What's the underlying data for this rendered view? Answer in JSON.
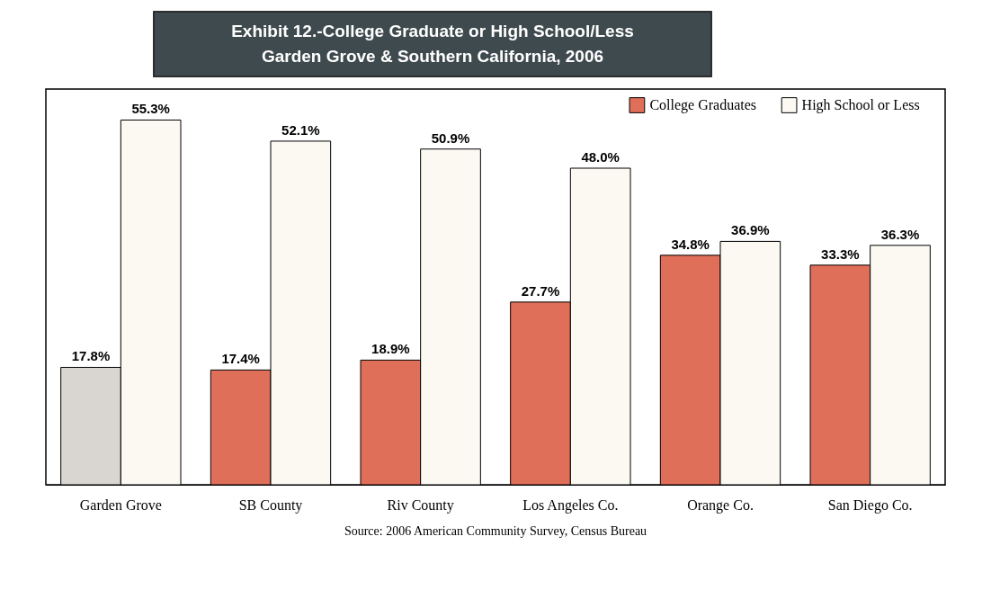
{
  "chart_data": {
    "type": "bar",
    "title": "Exhibit 12.-College Graduate or High School/Less",
    "subtitle": "Garden Grove & Southern California, 2006",
    "categories": [
      "Garden Grove",
      "SB County",
      "Riv County",
      "Los Angeles Co.",
      "Orange Co.",
      "San Diego Co."
    ],
    "series": [
      {
        "name": "College Graduates",
        "color": "#e06f5a",
        "colors": [
          "#d9d6d2",
          "#e06f5a",
          "#e06f5a",
          "#e06f5a",
          "#e06f5a",
          "#e06f5a"
        ],
        "values": [
          17.8,
          17.4,
          18.9,
          27.7,
          34.8,
          33.3
        ],
        "value_labels": [
          "17.8%",
          "17.4%",
          "18.9%",
          "27.7%",
          "34.8%",
          "33.3%"
        ]
      },
      {
        "name": "High School or Less",
        "color": "#fbf9f2",
        "values": [
          55.3,
          52.1,
          50.9,
          48.0,
          36.9,
          36.3
        ],
        "value_labels": [
          "55.3%",
          "52.1%",
          "50.9%",
          "48.0%",
          "36.9%",
          "36.3%"
        ]
      }
    ],
    "legend": "top right",
    "annotations": [
      "Source:  2006 American Community Survey, Census Bureau"
    ]
  }
}
